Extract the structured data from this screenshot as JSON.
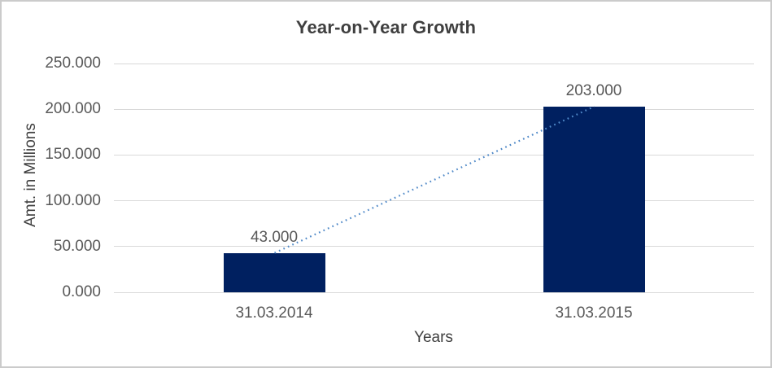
{
  "chart_data": {
    "type": "bar",
    "title": "Year-on-Year Growth",
    "xlabel": "Years",
    "ylabel": "Amt. in Millions",
    "categories": [
      "31.03.2014",
      "31.03.2015"
    ],
    "values": [
      43,
      203
    ],
    "data_labels": [
      "43.000",
      "203.000"
    ],
    "ylim": [
      0,
      250
    ],
    "ytick_interval": 50,
    "ytick_labels": [
      "0.000",
      "50.000",
      "100.000",
      "150.000",
      "200.000",
      "250.000"
    ],
    "grid": true,
    "legend": "none",
    "trendline": {
      "style": "dotted",
      "from_value": 43,
      "to_value": 203
    },
    "colors": {
      "bar": "#002060",
      "trendline": "#5089C8",
      "gridline": "#D9D9D9",
      "chart_title": "#3F3F3F",
      "axis_title": "#404040",
      "tick_label": "#595959",
      "border": "#CBCBCB"
    }
  }
}
